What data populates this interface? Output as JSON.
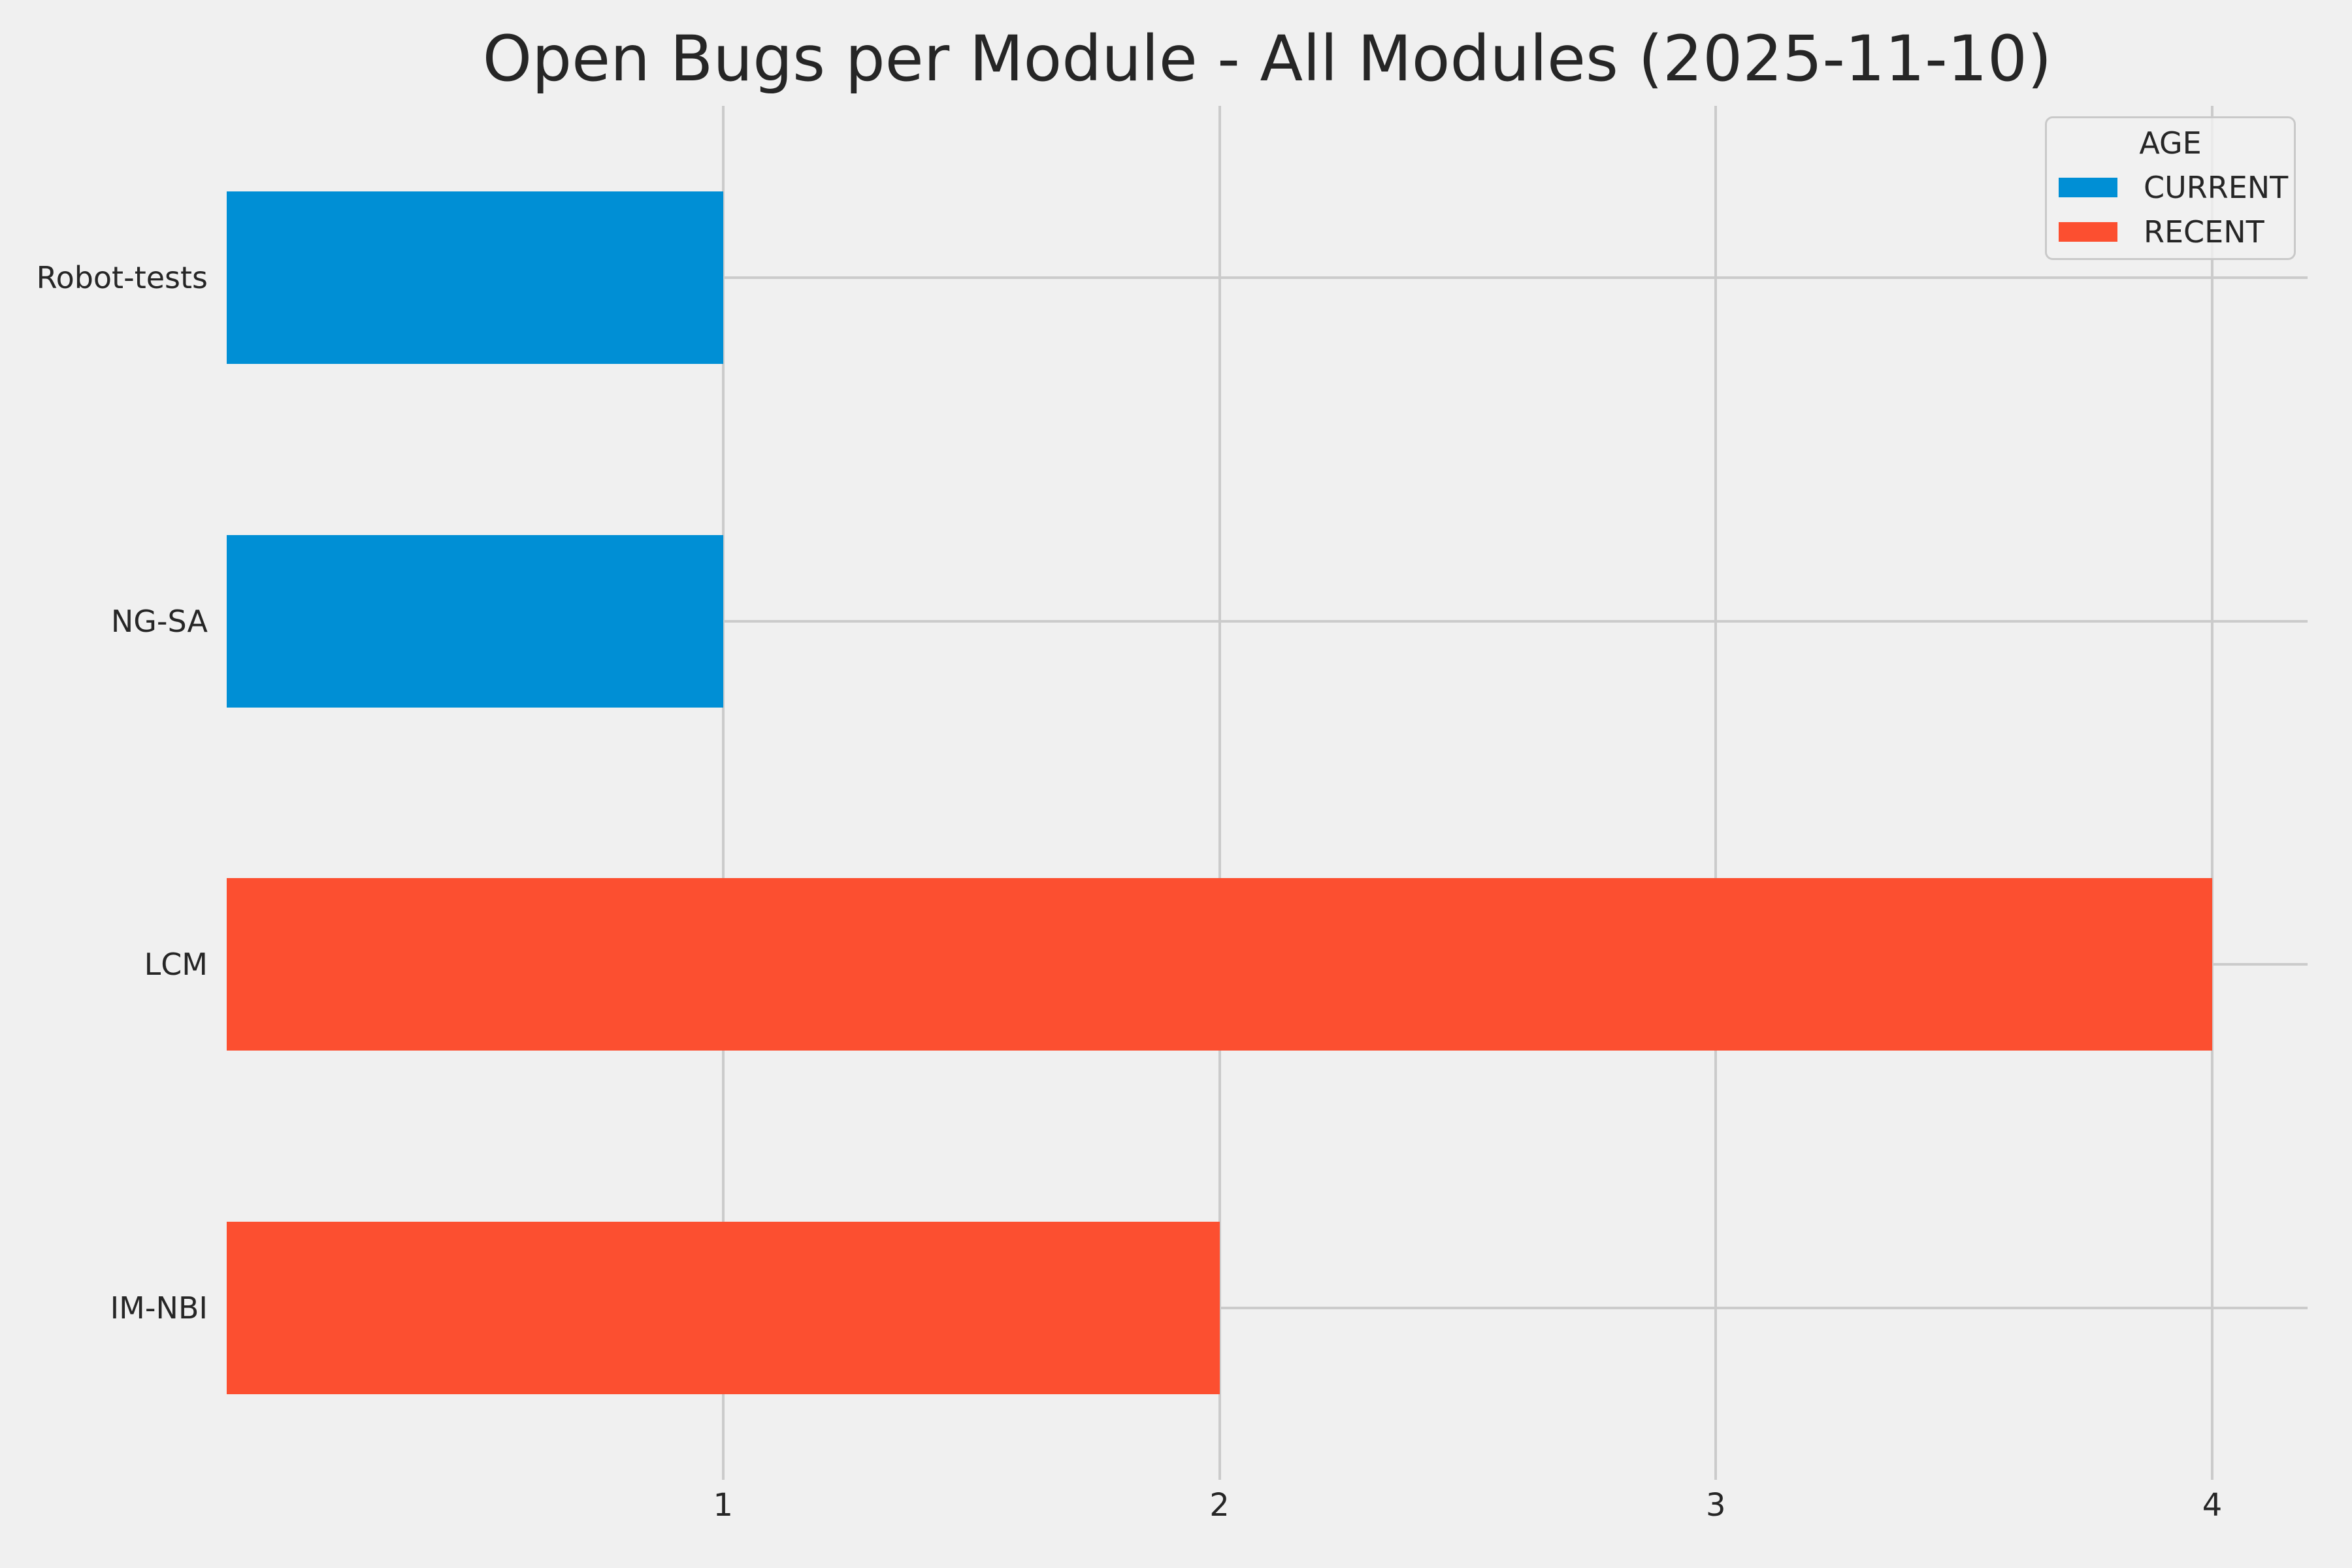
{
  "chart_data": {
    "type": "bar",
    "orientation": "horizontal",
    "title": "Open Bugs per Module - All Modules (2025-11-10)",
    "categories": [
      "Robot-tests",
      "NG-SA",
      "LCM",
      "IM-NBI"
    ],
    "bars": [
      {
        "category": "Robot-tests",
        "value": 1,
        "series": "CURRENT"
      },
      {
        "category": "NG-SA",
        "value": 1,
        "series": "CURRENT"
      },
      {
        "category": "LCM",
        "value": 4,
        "series": "RECENT"
      },
      {
        "category": "IM-NBI",
        "value": 2,
        "series": "RECENT"
      }
    ],
    "series": [
      {
        "name": "CURRENT",
        "color": "#008fd5",
        "values": [
          1,
          1,
          0,
          0
        ]
      },
      {
        "name": "RECENT",
        "color": "#fc4f30",
        "values": [
          0,
          0,
          4,
          2
        ]
      }
    ],
    "xlabel": "",
    "ylabel": "",
    "xticks": [
      "1",
      "2",
      "3",
      "4"
    ],
    "xlim": [
      0,
      4.19
    ],
    "grid": true,
    "legend": {
      "title": "AGE",
      "position": "upper-right",
      "entries": [
        {
          "label": "CURRENT",
          "color": "#008fd5"
        },
        {
          "label": "RECENT",
          "color": "#fc4f30"
        }
      ]
    },
    "colors": {
      "background": "#f0f0f0",
      "gridline": "#cbcbcb",
      "text": "#262626"
    }
  }
}
